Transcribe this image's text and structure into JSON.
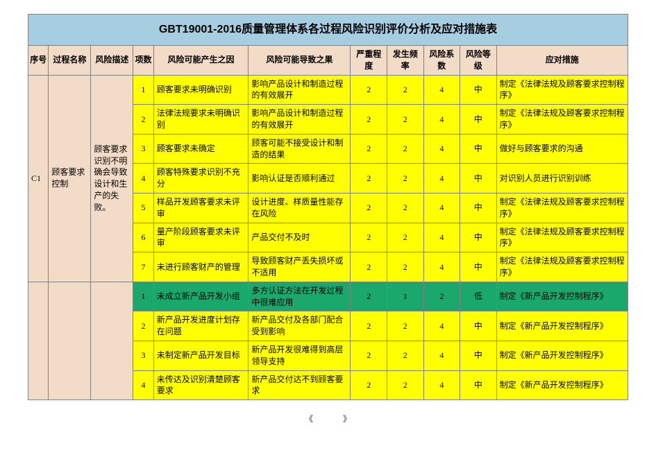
{
  "title": "GBT19001-2016质量管理体系各过程风险识别评价分析及应对措施表",
  "columns": {
    "seq": "序号",
    "process": "过程名称",
    "desc": "风险描述",
    "item": "项数",
    "cause": "风险可能产生之因",
    "effect": "风险可能导致之果",
    "severity": "严重程度",
    "freq": "发生频率",
    "coef": "风险系数",
    "level": "风险等级",
    "action": "应对措施"
  },
  "col_widths": {
    "seq": "28px",
    "process": "58px",
    "desc": "58px",
    "item": "28px",
    "cause": "130px",
    "effect": "140px",
    "severity": "50px",
    "freq": "50px",
    "coef": "50px",
    "level": "50px",
    "action": "180px"
  },
  "colors": {
    "title_bg": "#a7cee0",
    "header_bg": "#f2dcc7",
    "merge_bg": "#f2dcc7",
    "yellow": "#ffff00",
    "green": "#1aa86d",
    "border": "#808080"
  },
  "groups": [
    {
      "seq": "C1",
      "process": "顾客要求控制",
      "desc": "顾客要求识别不明确会导致设计和生产的失败。",
      "rows": [
        {
          "item": "1",
          "cause": "顾客要求未明确识别",
          "effect": "影响产品设计和制造过程的有效展开",
          "sev": "2",
          "freq": "2",
          "coef": "4",
          "level": "中",
          "action": "制定《法律法规及顾客要求控制程序》",
          "color": "yellow"
        },
        {
          "item": "2",
          "cause": "法律法规要求未明确识别",
          "effect": "影响产品设计和制造过程的有效展开",
          "sev": "2",
          "freq": "2",
          "coef": "4",
          "level": "中",
          "action": "制定《法律法规及顾客要求控制程序》",
          "color": "yellow"
        },
        {
          "item": "3",
          "cause": "顾客要求未确定",
          "effect": "顾客可能不接受设计和制造的结果",
          "sev": "2",
          "freq": "2",
          "coef": "4",
          "level": "中",
          "action": "做好与顾客要求的沟通",
          "color": "yellow"
        },
        {
          "item": "4",
          "cause": "顾客特殊要求识别不充分",
          "effect": "影响认证是否顺利通过",
          "sev": "2",
          "freq": "2",
          "coef": "4",
          "level": "中",
          "action": "对识别人员进行识别训练",
          "color": "yellow"
        },
        {
          "item": "5",
          "cause": "样品开发顾客要求未评审",
          "effect": "设计进度、样质量性能存在风险",
          "sev": "2",
          "freq": "2",
          "coef": "4",
          "level": "中",
          "action": "制定《法律法规及顾客要求控制程序》",
          "color": "yellow"
        },
        {
          "item": "6",
          "cause": "量产阶段顾客要求未评审",
          "effect": "产品交付不及时",
          "sev": "2",
          "freq": "2",
          "coef": "4",
          "level": "中",
          "action": "制定《法律法规及顾客要求控制程序》",
          "color": "yellow"
        },
        {
          "item": "7",
          "cause": "未进行顾客财产的管理",
          "effect": "导致顾客财产丢失损坏或不适用",
          "sev": "2",
          "freq": "2",
          "coef": "4",
          "level": "中",
          "action": "制定《法律法规及顾客要求控制程序》",
          "color": "yellow"
        }
      ]
    },
    {
      "seq": "",
      "process": "",
      "desc": "",
      "rows": [
        {
          "item": "1",
          "cause": "未成立新产品开发小组",
          "effect": "多方认证方法在开发过程中很难应用",
          "sev": "2",
          "freq": "1",
          "coef": "2",
          "level": "低",
          "action": "制定《新产品开发控制程序》",
          "color": "green"
        },
        {
          "item": "2",
          "cause": "新产品开发进度计划存在问题",
          "effect": "新产品交付及各部门配合受到影响",
          "sev": "2",
          "freq": "2",
          "coef": "4",
          "level": "中",
          "action": "制定《新产品开发控制程序》",
          "color": "yellow"
        },
        {
          "item": "3",
          "cause": "未制定新产品开发目标",
          "effect": "新产品开发很难得到高层领导支持",
          "sev": "2",
          "freq": "2",
          "coef": "4",
          "level": "中",
          "action": "制定《新产品开发控制程序》",
          "color": "yellow"
        },
        {
          "item": "4",
          "cause": "未传达及识别清楚顾客要求",
          "effect": "新产品交付达不到顾客要求",
          "sev": "2",
          "freq": "2",
          "coef": "4",
          "level": "中",
          "action": "制定《新产品开发控制程序》",
          "color": "yellow"
        }
      ]
    }
  ],
  "pager": {
    "prev": "《",
    "page": "",
    "next": "》"
  }
}
